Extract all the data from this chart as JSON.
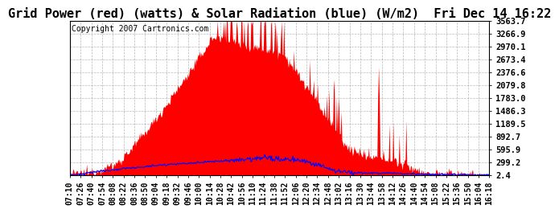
{
  "title": "Grid Power (red) (watts) & Solar Radiation (blue) (W/m2)  Fri Dec 14 16:22",
  "copyright_text": "Copyright 2007 Cartronics.com",
  "background_color": "#ffffff",
  "plot_bg_color": "#ffffff",
  "grid_color": "#888888",
  "yticks": [
    2.4,
    299.2,
    595.9,
    892.7,
    1189.5,
    1486.3,
    1783.0,
    2079.8,
    2376.6,
    2673.4,
    2970.1,
    3266.9,
    3563.7
  ],
  "ymin": 0,
  "ymax": 3563.7,
  "red_color": "#ff0000",
  "blue_color": "#0000ff",
  "title_fontsize": 11,
  "copyright_fontsize": 7,
  "tick_fontsize": 7,
  "xtick_labels": [
    "07:10",
    "07:26",
    "07:40",
    "07:54",
    "08:08",
    "08:22",
    "08:36",
    "08:50",
    "09:04",
    "09:18",
    "09:32",
    "09:46",
    "10:00",
    "10:14",
    "10:28",
    "10:42",
    "10:56",
    "11:10",
    "11:24",
    "11:38",
    "11:52",
    "12:06",
    "12:20",
    "12:34",
    "12:48",
    "13:02",
    "13:16",
    "13:30",
    "13:44",
    "13:58",
    "14:12",
    "14:26",
    "14:40",
    "14:54",
    "15:08",
    "15:22",
    "15:36",
    "15:50",
    "16:04",
    "16:18"
  ],
  "num_points": 550
}
